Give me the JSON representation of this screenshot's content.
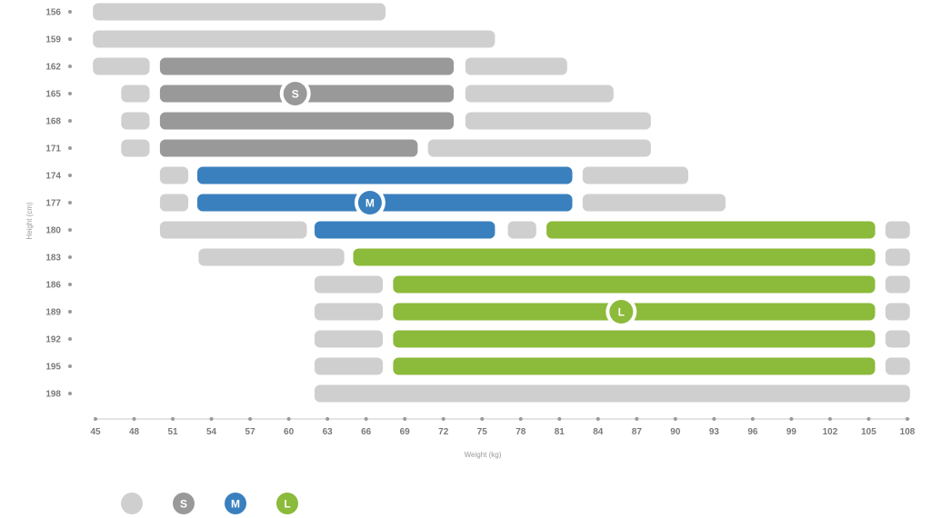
{
  "colors": {
    "none": "#cfcfcf",
    "S": "#999999",
    "M": "#3a80be",
    "L": "#8cba3a",
    "axis": "#c8c8c8",
    "dot": "#9a9a9a"
  },
  "chart_data": {
    "type": "bar",
    "orientation": "horizontal-range",
    "xlabel": "Weight (kg)",
    "ylabel": "Height (cm)",
    "x_ticks": [
      45,
      48,
      51,
      54,
      57,
      60,
      63,
      66,
      69,
      72,
      75,
      78,
      81,
      84,
      87,
      90,
      93,
      96,
      99,
      102,
      105,
      108
    ],
    "y_ticks": [
      156,
      159,
      162,
      165,
      168,
      171,
      174,
      177,
      180,
      183,
      186,
      189,
      192,
      195,
      198
    ],
    "grid": false,
    "legend_position": "bottom-left",
    "rows": [
      {
        "height": 156,
        "segments": [
          {
            "from": 44.8,
            "to": 67.5,
            "size": "none"
          }
        ]
      },
      {
        "height": 159,
        "segments": [
          {
            "from": 44.8,
            "to": 76.0,
            "size": "none"
          }
        ]
      },
      {
        "height": 162,
        "segments": [
          {
            "from": 44.8,
            "to": 49.2,
            "size": "none"
          },
          {
            "from": 50.0,
            "to": 72.8,
            "size": "S"
          },
          {
            "from": 73.7,
            "to": 81.6,
            "size": "none"
          }
        ]
      },
      {
        "height": 165,
        "segments": [
          {
            "from": 47.0,
            "to": 49.2,
            "size": "none"
          },
          {
            "from": 50.0,
            "to": 72.8,
            "size": "S"
          },
          {
            "from": 73.7,
            "to": 85.2,
            "size": "none"
          }
        ]
      },
      {
        "height": 168,
        "segments": [
          {
            "from": 47.0,
            "to": 49.2,
            "size": "none"
          },
          {
            "from": 50.0,
            "to": 72.8,
            "size": "S"
          },
          {
            "from": 73.7,
            "to": 88.1,
            "size": "none"
          }
        ]
      },
      {
        "height": 171,
        "segments": [
          {
            "from": 47.0,
            "to": 49.2,
            "size": "none"
          },
          {
            "from": 50.0,
            "to": 70.0,
            "size": "S"
          },
          {
            "from": 70.8,
            "to": 88.1,
            "size": "none"
          }
        ]
      },
      {
        "height": 174,
        "segments": [
          {
            "from": 50.0,
            "to": 52.2,
            "size": "none"
          },
          {
            "from": 52.9,
            "to": 82.0,
            "size": "M"
          },
          {
            "from": 82.8,
            "to": 91.0,
            "size": "none"
          }
        ]
      },
      {
        "height": 177,
        "segments": [
          {
            "from": 50.0,
            "to": 52.2,
            "size": "none"
          },
          {
            "from": 52.9,
            "to": 82.0,
            "size": "M"
          },
          {
            "from": 82.8,
            "to": 93.9,
            "size": "none"
          }
        ]
      },
      {
        "height": 180,
        "segments": [
          {
            "from": 50.0,
            "to": 61.4,
            "size": "none"
          },
          {
            "from": 62.0,
            "to": 76.0,
            "size": "M"
          },
          {
            "from": 77.0,
            "to": 79.2,
            "size": "none"
          },
          {
            "from": 80.0,
            "to": 105.5,
            "size": "L"
          },
          {
            "from": 106.3,
            "to": 108.2,
            "size": "none"
          }
        ]
      },
      {
        "height": 183,
        "segments": [
          {
            "from": 53.0,
            "to": 64.3,
            "size": "none"
          },
          {
            "from": 65.0,
            "to": 105.5,
            "size": "L"
          },
          {
            "from": 106.3,
            "to": 108.2,
            "size": "none"
          }
        ]
      },
      {
        "height": 186,
        "segments": [
          {
            "from": 62.0,
            "to": 67.3,
            "size": "none"
          },
          {
            "from": 68.1,
            "to": 105.5,
            "size": "L"
          },
          {
            "from": 106.3,
            "to": 108.2,
            "size": "none"
          }
        ]
      },
      {
        "height": 189,
        "segments": [
          {
            "from": 62.0,
            "to": 67.3,
            "size": "none"
          },
          {
            "from": 68.1,
            "to": 105.5,
            "size": "L"
          },
          {
            "from": 106.3,
            "to": 108.2,
            "size": "none"
          }
        ]
      },
      {
        "height": 192,
        "segments": [
          {
            "from": 62.0,
            "to": 67.3,
            "size": "none"
          },
          {
            "from": 68.1,
            "to": 105.5,
            "size": "L"
          },
          {
            "from": 106.3,
            "to": 108.2,
            "size": "none"
          }
        ]
      },
      {
        "height": 195,
        "segments": [
          {
            "from": 62.0,
            "to": 67.3,
            "size": "none"
          },
          {
            "from": 68.1,
            "to": 105.5,
            "size": "L"
          },
          {
            "from": 106.3,
            "to": 108.2,
            "size": "none"
          }
        ]
      },
      {
        "height": 198,
        "segments": [
          {
            "from": 62.0,
            "to": 108.2,
            "size": "none"
          }
        ]
      }
    ],
    "markers": [
      {
        "label": "S",
        "weight": 60.5,
        "height": 165
      },
      {
        "label": "M",
        "weight": 66.3,
        "height": 177
      },
      {
        "label": "L",
        "weight": 85.8,
        "height": 189
      }
    ],
    "legend": [
      {
        "size": "none",
        "label": ""
      },
      {
        "size": "S",
        "label": "S"
      },
      {
        "size": "M",
        "label": "M"
      },
      {
        "size": "L",
        "label": "L"
      }
    ]
  }
}
